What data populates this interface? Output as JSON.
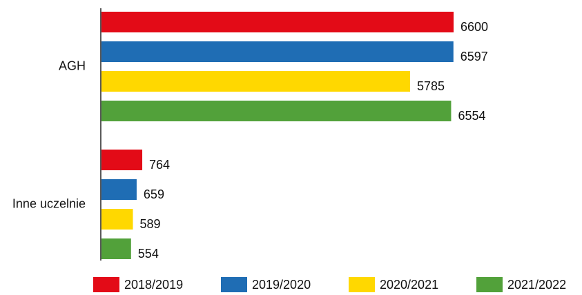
{
  "chart_data": {
    "type": "bar",
    "orientation": "horizontal",
    "categories": [
      "AGH",
      "Inne uczelnie"
    ],
    "series": [
      {
        "name": "2018/2019",
        "color": "#e30b17",
        "values": [
          6600,
          764
        ]
      },
      {
        "name": "2019/2020",
        "color": "#1f6db4",
        "values": [
          6597,
          659
        ]
      },
      {
        "name": "2020/2021",
        "color": "#ffd800",
        "values": [
          5785,
          589
        ]
      },
      {
        "name": "2021/2022",
        "color": "#52a13a",
        "values": [
          6554,
          554
        ]
      }
    ],
    "legend": "bottom"
  }
}
